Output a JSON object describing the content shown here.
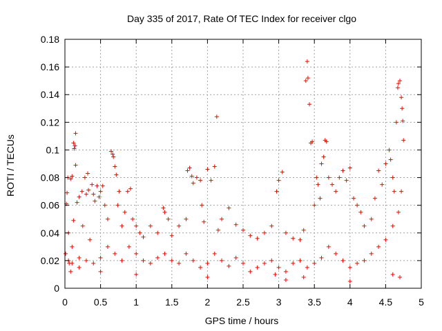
{
  "chart_data": {
    "type": "scatter",
    "title": "Day 335 of 2017, Rate Of TEC Index for receiver clgo",
    "xlabel": "GPS time / hours",
    "ylabel": "ROTI / TECUs",
    "xlim": [
      0,
      5
    ],
    "ylim": [
      0,
      0.18
    ],
    "xticks": [
      0,
      0.5,
      1,
      1.5,
      2,
      2.5,
      3,
      3.5,
      4,
      4.5,
      5
    ],
    "xtick_labels": [
      "0",
      "0.5",
      "1",
      "1.5",
      "2",
      "2.5",
      "3",
      "3.5",
      "4",
      "4.5",
      "5"
    ],
    "yticks": [
      0,
      0.02,
      0.04,
      0.06,
      0.08,
      0.1,
      0.12,
      0.14,
      0.16,
      0.18
    ],
    "ytick_labels": [
      "0",
      "0.02",
      "0.04",
      "0.06",
      "0.08",
      "0.1",
      "0.12",
      "0.14",
      "0.16",
      "0.18"
    ],
    "grid": true,
    "marker": "+",
    "marker_color": "#ff0000",
    "series": [
      {
        "name": "ROTI",
        "points": [
          [
            0.01,
            0.025
          ],
          [
            0.02,
            0.061
          ],
          [
            0.03,
            0.069
          ],
          [
            0.04,
            0.08
          ],
          [
            0.05,
            0.04
          ],
          [
            0.06,
            0.018
          ],
          [
            0.08,
            0.079
          ],
          [
            0.1,
            0.081
          ],
          [
            0.1,
            0.03
          ],
          [
            0.12,
            0.105
          ],
          [
            0.13,
            0.101
          ],
          [
            0.14,
            0.103
          ],
          [
            0.15,
            0.112
          ],
          [
            0.15,
            0.089
          ],
          [
            0.12,
            0.049
          ],
          [
            0.08,
            0.012
          ],
          [
            0.17,
            0.062
          ],
          [
            0.2,
            0.066
          ],
          [
            0.2,
            0.022
          ],
          [
            0.24,
            0.07
          ],
          [
            0.25,
            0.045
          ],
          [
            0.28,
            0.08
          ],
          [
            0.3,
            0.068
          ],
          [
            0.32,
            0.083
          ],
          [
            0.33,
            0.071
          ],
          [
            0.35,
            0.035
          ],
          [
            0.38,
            0.075
          ],
          [
            0.4,
            0.068
          ],
          [
            0.42,
            0.063
          ],
          [
            0.45,
            0.074
          ],
          [
            0.48,
            0.066
          ],
          [
            0.5,
            0.07
          ],
          [
            0.53,
            0.074
          ],
          [
            0.56,
            0.06
          ],
          [
            0.6,
            0.05
          ],
          [
            0.65,
            0.099
          ],
          [
            0.67,
            0.097
          ],
          [
            0.68,
            0.095
          ],
          [
            0.7,
            0.088
          ],
          [
            0.72,
            0.082
          ],
          [
            0.74,
            0.06
          ],
          [
            0.76,
            0.07
          ],
          [
            0.8,
            0.045
          ],
          [
            0.84,
            0.055
          ],
          [
            0.88,
            0.07
          ],
          [
            0.92,
            0.072
          ],
          [
            0.95,
            0.05
          ],
          [
            1.0,
            0.045
          ],
          [
            1.05,
            0.04
          ],
          [
            1.1,
            0.037
          ],
          [
            1.2,
            0.045
          ],
          [
            1.3,
            0.04
          ],
          [
            1.38,
            0.058
          ],
          [
            1.4,
            0.055
          ],
          [
            1.45,
            0.05
          ],
          [
            1.5,
            0.038
          ],
          [
            1.6,
            0.045
          ],
          [
            1.7,
            0.05
          ],
          [
            1.72,
            0.085
          ],
          [
            1.75,
            0.087
          ],
          [
            1.78,
            0.081
          ],
          [
            1.8,
            0.076
          ],
          [
            1.85,
            0.08
          ],
          [
            1.9,
            0.078
          ],
          [
            1.92,
            0.06
          ],
          [
            1.95,
            0.048
          ],
          [
            2.0,
            0.086
          ],
          [
            2.05,
            0.078
          ],
          [
            2.1,
            0.088
          ],
          [
            2.13,
            0.124
          ],
          [
            2.15,
            0.042
          ],
          [
            2.2,
            0.05
          ],
          [
            2.3,
            0.058
          ],
          [
            2.4,
            0.046
          ],
          [
            2.5,
            0.042
          ],
          [
            2.6,
            0.038
          ],
          [
            2.7,
            0.036
          ],
          [
            2.8,
            0.04
          ],
          [
            2.9,
            0.045
          ],
          [
            2.97,
            0.07
          ],
          [
            3.0,
            0.078
          ],
          [
            3.05,
            0.084
          ],
          [
            3.1,
            0.04
          ],
          [
            3.2,
            0.036
          ],
          [
            3.3,
            0.035
          ],
          [
            3.35,
            0.042
          ],
          [
            3.38,
            0.15
          ],
          [
            3.4,
            0.164
          ],
          [
            3.41,
            0.152
          ],
          [
            3.43,
            0.133
          ],
          [
            3.45,
            0.105
          ],
          [
            3.47,
            0.106
          ],
          [
            3.5,
            0.06
          ],
          [
            3.53,
            0.08
          ],
          [
            3.55,
            0.075
          ],
          [
            3.58,
            0.065
          ],
          [
            3.6,
            0.09
          ],
          [
            3.63,
            0.095
          ],
          [
            3.65,
            0.107
          ],
          [
            3.67,
            0.106
          ],
          [
            3.7,
            0.08
          ],
          [
            3.75,
            0.075
          ],
          [
            3.8,
            0.07
          ],
          [
            3.85,
            0.08
          ],
          [
            3.9,
            0.085
          ],
          [
            3.95,
            0.078
          ],
          [
            4.0,
            0.087
          ],
          [
            4.05,
            0.065
          ],
          [
            4.1,
            0.06
          ],
          [
            4.15,
            0.055
          ],
          [
            4.2,
            0.045
          ],
          [
            4.3,
            0.05
          ],
          [
            4.35,
            0.065
          ],
          [
            4.4,
            0.085
          ],
          [
            4.45,
            0.075
          ],
          [
            4.5,
            0.09
          ],
          [
            4.55,
            0.1
          ],
          [
            4.57,
            0.093
          ],
          [
            4.6,
            0.08
          ],
          [
            4.62,
            0.07
          ],
          [
            4.65,
            0.12
          ],
          [
            4.67,
            0.145
          ],
          [
            4.68,
            0.148
          ],
          [
            4.7,
            0.15
          ],
          [
            4.72,
            0.138
          ],
          [
            4.73,
            0.13
          ],
          [
            4.74,
            0.121
          ],
          [
            4.75,
            0.107
          ],
          [
            4.72,
            0.07
          ],
          [
            4.68,
            0.055
          ],
          [
            4.6,
            0.045
          ],
          [
            4.5,
            0.035
          ],
          [
            4.4,
            0.03
          ],
          [
            4.3,
            0.025
          ],
          [
            4.2,
            0.02
          ],
          [
            4.1,
            0.018
          ],
          [
            4.0,
            0.015
          ],
          [
            3.9,
            0.02
          ],
          [
            3.8,
            0.025
          ],
          [
            3.7,
            0.03
          ],
          [
            3.6,
            0.022
          ],
          [
            3.5,
            0.018
          ],
          [
            3.4,
            0.015
          ],
          [
            3.3,
            0.02
          ],
          [
            3.2,
            0.018
          ],
          [
            3.1,
            0.012
          ],
          [
            3.0,
            0.015
          ],
          [
            2.9,
            0.02
          ],
          [
            2.8,
            0.018
          ],
          [
            2.7,
            0.015
          ],
          [
            2.6,
            0.012
          ],
          [
            2.5,
            0.018
          ],
          [
            2.4,
            0.022
          ],
          [
            2.3,
            0.016
          ],
          [
            2.2,
            0.02
          ],
          [
            2.1,
            0.025
          ],
          [
            2.0,
            0.018
          ],
          [
            1.9,
            0.015
          ],
          [
            1.8,
            0.02
          ],
          [
            1.7,
            0.025
          ],
          [
            1.6,
            0.018
          ],
          [
            1.5,
            0.02
          ],
          [
            1.4,
            0.025
          ],
          [
            1.3,
            0.022
          ],
          [
            1.2,
            0.018
          ],
          [
            1.1,
            0.02
          ],
          [
            1.0,
            0.025
          ],
          [
            0.9,
            0.03
          ],
          [
            0.8,
            0.02
          ],
          [
            0.7,
            0.025
          ],
          [
            0.6,
            0.03
          ],
          [
            0.5,
            0.022
          ],
          [
            0.4,
            0.018
          ],
          [
            0.3,
            0.02
          ],
          [
            0.2,
            0.015
          ],
          [
            0.1,
            0.018
          ],
          [
            0.05,
            0.02
          ],
          [
            4.6,
            0.01
          ],
          [
            4.7,
            0.008
          ],
          [
            4.0,
            0.005
          ],
          [
            3.1,
            0.006
          ],
          [
            2.0,
            0.008
          ],
          [
            1.0,
            0.01
          ],
          [
            0.5,
            0.012
          ],
          [
            2.95,
            0.01
          ],
          [
            3.35,
            0.008
          ]
        ]
      }
    ]
  }
}
